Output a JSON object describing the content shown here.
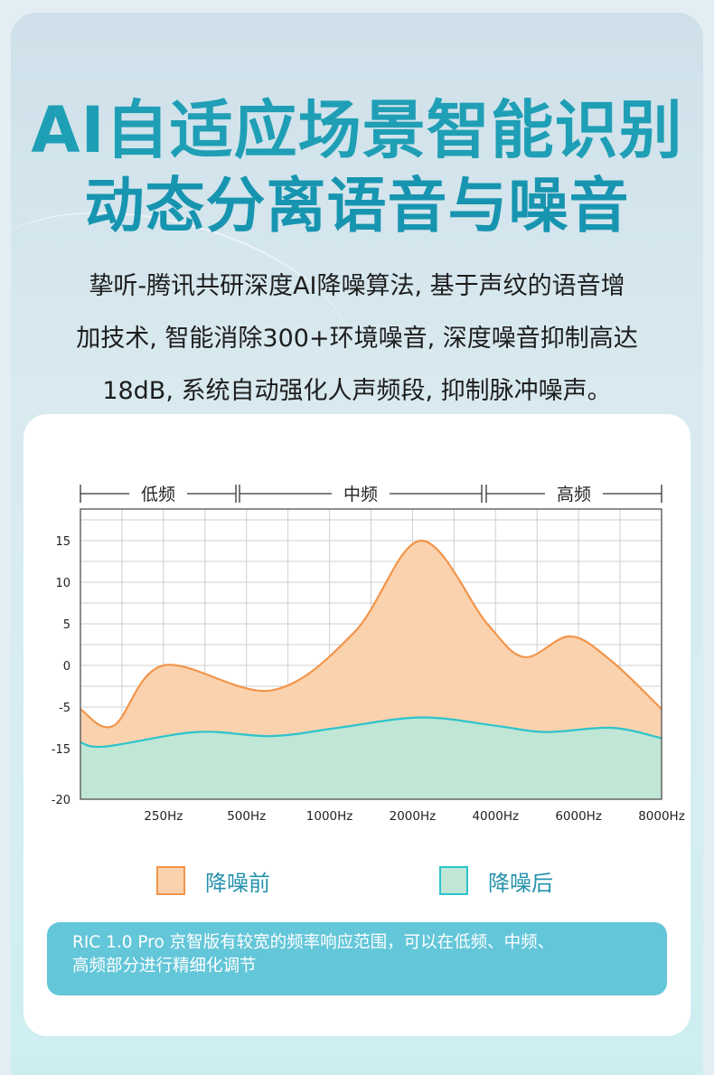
{
  "headline": {
    "line1": "AI自适应场景智能识别",
    "line2": "动态分离语音与噪音"
  },
  "description": {
    "line1": "挚听-腾讯共研深度AI降噪算法, 基于声纹的语音增",
    "line2": "加技术, 智能消除300+环境噪音, 深度噪音抑制高达",
    "line3": "18dB, 系统自动强化人声频段, 抑制脉冲噪声。"
  },
  "note": {
    "line1": "RIC 1.0 Pro 京智版有较宽的频率响应范围，可以在低频、中频、",
    "line2": "高频部分进行精细化调节"
  },
  "colors": {
    "title": "#1f9fb5",
    "before_stroke": "#f2954a",
    "before_fill": "#fbd2ae",
    "after_stroke": "#2cc4cc",
    "after_fill": "#c0e6d5",
    "note_bg": "#63c6d9"
  },
  "chart_data": {
    "type": "area",
    "bands": [
      "低频",
      "中频",
      "高频"
    ],
    "y_tick_labels": [
      "15",
      "10",
      "5",
      "0",
      "-5",
      "-15",
      "-20"
    ],
    "x_tick_labels": [
      "250Hz",
      "500Hz",
      "1000Hz",
      "2000Hz",
      "4000Hz",
      "6000Hz",
      "8000Hz"
    ],
    "legend_position": "bottom",
    "grid": true,
    "series": [
      {
        "name": "降噪前",
        "points": [
          [
            0,
            -5.5
          ],
          [
            0.4,
            -9.5
          ],
          [
            1,
            0
          ],
          [
            2.3,
            -3
          ],
          [
            3.3,
            4
          ],
          [
            4.1,
            15
          ],
          [
            4.9,
            5
          ],
          [
            5.35,
            1
          ],
          [
            5.9,
            3.5
          ],
          [
            6.4,
            0.5
          ],
          [
            7,
            -5.5
          ]
        ]
      },
      {
        "name": "降噪后",
        "points": [
          [
            0,
            -13.5
          ],
          [
            0.3,
            -14.5
          ],
          [
            1.4,
            -11
          ],
          [
            2.3,
            -12
          ],
          [
            3.1,
            -10
          ],
          [
            4.1,
            -7.5
          ],
          [
            5,
            -9.5
          ],
          [
            5.6,
            -11
          ],
          [
            6.4,
            -10
          ],
          [
            7,
            -12.5
          ]
        ]
      }
    ]
  }
}
